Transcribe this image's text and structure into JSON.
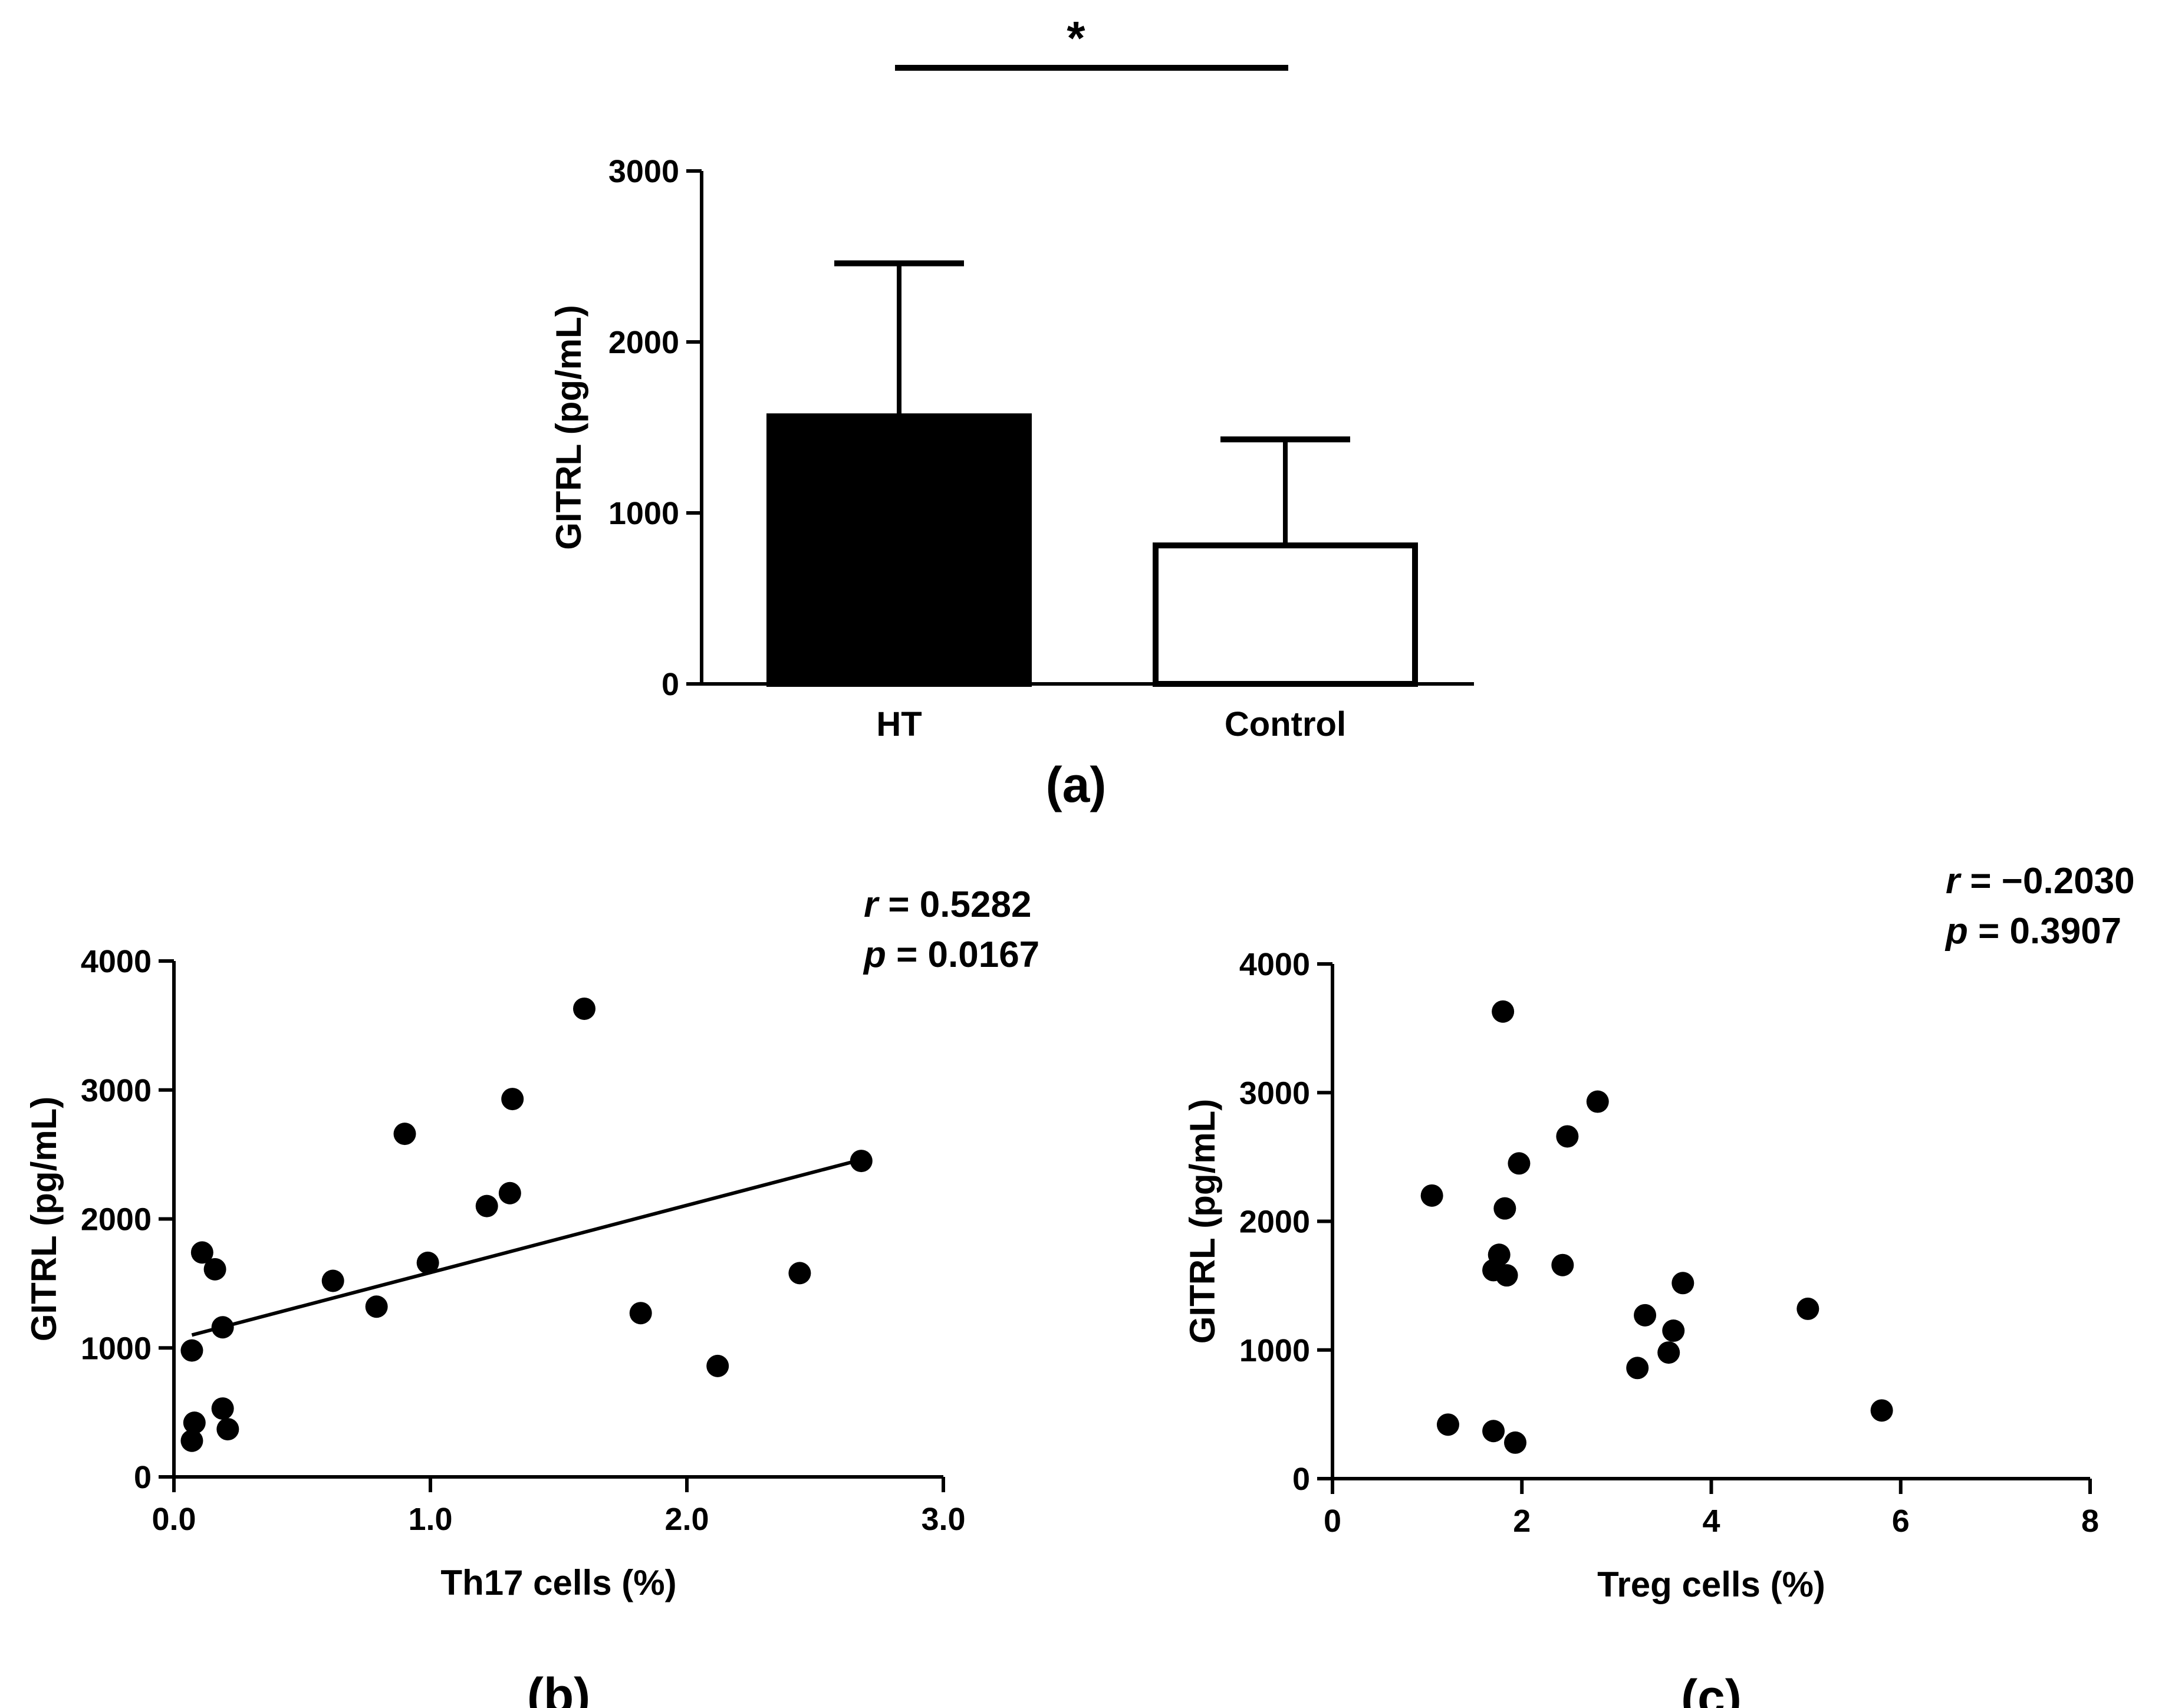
{
  "chart_data": [
    {
      "type": "bar",
      "panel_label": "a",
      "categories": [
        "HT",
        "Control"
      ],
      "values": [
        1565,
        810
      ],
      "error_upper": [
        2460,
        1430
      ],
      "fills": [
        "#000000",
        "#ffffff"
      ],
      "ylabel": "GITRL (pg/mL)",
      "ylim": [
        0,
        3000
      ],
      "yticks": [
        "0",
        "1000",
        "2000",
        "3000"
      ],
      "significance": "*"
    },
    {
      "type": "scatter",
      "panel_label": "b",
      "xlabel": "Th17 cells (%)",
      "ylabel": "GITRL (pg/mL)",
      "xlim": [
        0,
        3
      ],
      "ylim": [
        0,
        4000
      ],
      "xticks": [
        "0.0",
        "1.0",
        "2.0",
        "3.0"
      ],
      "yticks": [
        "0",
        "1000",
        "2000",
        "3000",
        "4000"
      ],
      "r_label": "r",
      "r_value": "= 0.5282",
      "p_label": "p",
      "p_value": "= 0.0167",
      "trendline": [
        [
          0.07,
          1100
        ],
        [
          2.68,
          2460
        ]
      ],
      "points": [
        [
          0.07,
          280
        ],
        [
          0.08,
          420
        ],
        [
          0.07,
          980
        ],
        [
          0.11,
          1740
        ],
        [
          0.16,
          1610
        ],
        [
          0.19,
          1160
        ],
        [
          0.19,
          530
        ],
        [
          0.21,
          370
        ],
        [
          0.62,
          1520
        ],
        [
          0.79,
          1320
        ],
        [
          0.9,
          2660
        ],
        [
          0.99,
          1660
        ],
        [
          1.22,
          2100
        ],
        [
          1.31,
          2200
        ],
        [
          1.32,
          2930
        ],
        [
          1.6,
          3630
        ],
        [
          1.82,
          1270
        ],
        [
          2.12,
          860
        ],
        [
          2.44,
          1580
        ],
        [
          2.68,
          2450
        ]
      ]
    },
    {
      "type": "scatter",
      "panel_label": "c",
      "xlabel": "Treg cells (%)",
      "ylabel": "GITRL (pg/mL)",
      "xlim": [
        0,
        8
      ],
      "ylim": [
        0,
        4000
      ],
      "xticks": [
        "0",
        "2",
        "4",
        "6",
        "8"
      ],
      "yticks": [
        "0",
        "1000",
        "2000",
        "3000",
        "4000"
      ],
      "r_label": "r",
      "r_value": "= −0.2030",
      "p_label": "p",
      "p_value": "= 0.3907",
      "points": [
        [
          1.05,
          2200
        ],
        [
          1.22,
          420
        ],
        [
          1.7,
          1620
        ],
        [
          1.7,
          370
        ],
        [
          1.76,
          1740
        ],
        [
          1.8,
          3630
        ],
        [
          1.82,
          2100
        ],
        [
          1.84,
          1580
        ],
        [
          1.93,
          280
        ],
        [
          1.97,
          2450
        ],
        [
          2.43,
          1660
        ],
        [
          2.48,
          2660
        ],
        [
          2.8,
          2930
        ],
        [
          3.22,
          860
        ],
        [
          3.3,
          1270
        ],
        [
          3.55,
          980
        ],
        [
          3.6,
          1150
        ],
        [
          3.7,
          1520
        ],
        [
          5.02,
          1320
        ],
        [
          5.8,
          530
        ]
      ]
    }
  ]
}
